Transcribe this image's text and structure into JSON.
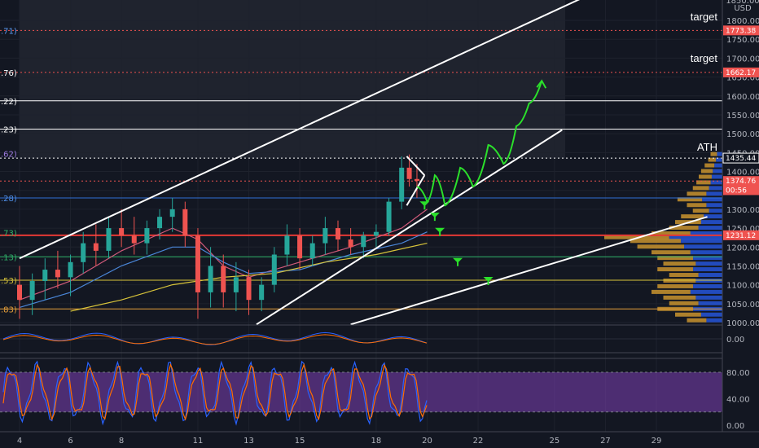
{
  "chart_data": {
    "type": "candlestick",
    "price_axis": {
      "currency_label": "USD",
      "top_label": "1850.00",
      "ticks": [
        "1800.00",
        "1750.00",
        "1700.00",
        "1650.00",
        "1600.00",
        "1550.00",
        "1500.00",
        "1450.00",
        "1400.00",
        "1350.00",
        "1300.00",
        "1250.00",
        "1200.00",
        "1150.00",
        "1100.00",
        "1050.00",
        "1000.00"
      ],
      "tick_values": [
        1800,
        1750,
        1700,
        1650,
        1600,
        1550,
        1500,
        1450,
        1400,
        1350,
        1300,
        1250,
        1200,
        1150,
        1100,
        1050,
        1000
      ]
    },
    "time_axis": {
      "ticks": [
        "4",
        "6",
        "8",
        "11",
        "13",
        "15",
        "18",
        "20",
        "22",
        "25",
        "27",
        "29"
      ],
      "day_values": [
        4,
        6,
        8,
        11,
        13,
        15,
        18,
        20,
        22,
        25,
        27,
        29
      ]
    },
    "macd_axis": {
      "ticks": [
        "0.00"
      ]
    },
    "stoch_axis": {
      "ticks": [
        "80.00",
        "40.00",
        "0.00"
      ],
      "band": [
        20,
        80
      ]
    },
    "price_tags": [
      {
        "value": "1773.38",
        "price": 1773.38,
        "color": "#ef5350"
      },
      {
        "value": "1662.17",
        "price": 1662.17,
        "color": "#ef5350"
      },
      {
        "value": "1435.44",
        "price": 1435.44,
        "color": "#131722"
      },
      {
        "value": "1374.76",
        "price": 1374.76,
        "color": "#ef5350"
      },
      {
        "value": "00:56",
        "price": 1350.5,
        "color": "#ef5350"
      },
      {
        "value": "1231.12",
        "price": 1231.12,
        "color": "#ef5350"
      }
    ],
    "fib_labels": [
      {
        "text": ".71)",
        "price": 1773.38,
        "color": "#5b9cf6"
      },
      {
        "text": ".76)",
        "price": 1662.17,
        "color": "#ffffff"
      },
      {
        "text": ".22)",
        "price": 1587,
        "color": "#ffffff"
      },
      {
        "text": ".23)",
        "price": 1512,
        "color": "#ffffff"
      },
      {
        "text": ".62)",
        "price": 1447,
        "color": "#9c7be0"
      },
      {
        "text": ".28)",
        "price": 1330,
        "color": "#4f8fe8"
      },
      {
        "text": ".73)",
        "price": 1238,
        "color": "#2fb36a"
      },
      {
        "text": ".13)",
        "price": 1174,
        "color": "#2fb36a"
      },
      {
        "text": ".53)",
        "price": 1112,
        "color": "#d8c43a"
      },
      {
        "text": ".83)",
        "price": 1036,
        "color": "#e8a03a"
      }
    ],
    "horizontal_lines": [
      {
        "price": 1773.38,
        "color": "#ef5350",
        "style": "dotted"
      },
      {
        "price": 1662.17,
        "color": "#ef5350",
        "style": "dotted"
      },
      {
        "price": 1587,
        "color": "#ffffff",
        "style": "solid"
      },
      {
        "price": 1512,
        "color": "#ffffff",
        "style": "solid"
      },
      {
        "price": 1435.44,
        "color": "#ffffff",
        "style": "dotted"
      },
      {
        "price": 1330,
        "color": "#2f6fd6",
        "style": "solid"
      },
      {
        "price": 1231.12,
        "color": "#e53935",
        "style": "solid"
      },
      {
        "price": 1174,
        "color": "#2fb36a",
        "style": "solid"
      },
      {
        "price": 1112,
        "color": "#d8c43a",
        "style": "solid"
      },
      {
        "price": 1036,
        "color": "#e8a03a",
        "style": "solid"
      },
      {
        "price": 1374.76,
        "color": "#ef5350",
        "style": "dotted"
      }
    ],
    "annotations": [
      {
        "text": "target",
        "price": 1800
      },
      {
        "text": "target",
        "price": 1690
      },
      {
        "text": "ATH",
        "price": 1455
      }
    ],
    "candles": [
      {
        "day": 4,
        "o": 1100,
        "h": 1150,
        "l": 1010,
        "c": 1060
      },
      {
        "day": 4.5,
        "o": 1060,
        "h": 1130,
        "l": 1020,
        "c": 1110
      },
      {
        "day": 5,
        "o": 1110,
        "h": 1170,
        "l": 1060,
        "c": 1140
      },
      {
        "day": 5.5,
        "o": 1140,
        "h": 1190,
        "l": 1090,
        "c": 1120
      },
      {
        "day": 6,
        "o": 1120,
        "h": 1180,
        "l": 1070,
        "c": 1160
      },
      {
        "day": 6.5,
        "o": 1160,
        "h": 1240,
        "l": 1130,
        "c": 1210
      },
      {
        "day": 7,
        "o": 1210,
        "h": 1260,
        "l": 1150,
        "c": 1190
      },
      {
        "day": 7.5,
        "o": 1190,
        "h": 1280,
        "l": 1170,
        "c": 1250
      },
      {
        "day": 8,
        "o": 1250,
        "h": 1300,
        "l": 1200,
        "c": 1230
      },
      {
        "day": 8.5,
        "o": 1230,
        "h": 1280,
        "l": 1180,
        "c": 1210
      },
      {
        "day": 9,
        "o": 1210,
        "h": 1270,
        "l": 1180,
        "c": 1250
      },
      {
        "day": 9.5,
        "o": 1250,
        "h": 1300,
        "l": 1220,
        "c": 1280
      },
      {
        "day": 10,
        "o": 1280,
        "h": 1330,
        "l": 1240,
        "c": 1300
      },
      {
        "day": 10.5,
        "o": 1300,
        "h": 1320,
        "l": 1200,
        "c": 1230
      },
      {
        "day": 11,
        "o": 1230,
        "h": 1250,
        "l": 1010,
        "c": 1080
      },
      {
        "day": 11.5,
        "o": 1080,
        "h": 1200,
        "l": 1040,
        "c": 1150
      },
      {
        "day": 12,
        "o": 1150,
        "h": 1180,
        "l": 1040,
        "c": 1080
      },
      {
        "day": 12.5,
        "o": 1080,
        "h": 1160,
        "l": 1030,
        "c": 1120
      },
      {
        "day": 13,
        "o": 1120,
        "h": 1140,
        "l": 1020,
        "c": 1060
      },
      {
        "day": 13.5,
        "o": 1060,
        "h": 1120,
        "l": 1030,
        "c": 1100
      },
      {
        "day": 14,
        "o": 1100,
        "h": 1200,
        "l": 1080,
        "c": 1180
      },
      {
        "day": 14.5,
        "o": 1180,
        "h": 1260,
        "l": 1150,
        "c": 1230
      },
      {
        "day": 15,
        "o": 1230,
        "h": 1250,
        "l": 1140,
        "c": 1170
      },
      {
        "day": 15.5,
        "o": 1170,
        "h": 1230,
        "l": 1150,
        "c": 1210
      },
      {
        "day": 16,
        "o": 1210,
        "h": 1280,
        "l": 1180,
        "c": 1250
      },
      {
        "day": 16.5,
        "o": 1250,
        "h": 1270,
        "l": 1190,
        "c": 1220
      },
      {
        "day": 17,
        "o": 1220,
        "h": 1250,
        "l": 1180,
        "c": 1200
      },
      {
        "day": 17.5,
        "o": 1200,
        "h": 1240,
        "l": 1170,
        "c": 1230
      },
      {
        "day": 18,
        "o": 1230,
        "h": 1260,
        "l": 1200,
        "c": 1240
      },
      {
        "day": 18.5,
        "o": 1240,
        "h": 1330,
        "l": 1230,
        "c": 1320
      },
      {
        "day": 19,
        "o": 1320,
        "h": 1440,
        "l": 1300,
        "c": 1410
      },
      {
        "day": 19.3,
        "o": 1410,
        "h": 1445,
        "l": 1360,
        "c": 1380
      },
      {
        "day": 19.6,
        "o": 1380,
        "h": 1420,
        "l": 1330,
        "c": 1375
      }
    ],
    "moving_averages": [
      {
        "color": "#d05a7a",
        "points": [
          [
            4,
            1060
          ],
          [
            6,
            1110
          ],
          [
            8,
            1190
          ],
          [
            10,
            1250
          ],
          [
            11,
            1220
          ],
          [
            12,
            1150
          ],
          [
            13,
            1120
          ],
          [
            15,
            1160
          ],
          [
            17,
            1200
          ],
          [
            19,
            1250
          ],
          [
            20,
            1300
          ]
        ]
      },
      {
        "color": "#4a86d8",
        "points": [
          [
            4,
            1040
          ],
          [
            6,
            1080
          ],
          [
            8,
            1150
          ],
          [
            10,
            1200
          ],
          [
            11,
            1200
          ],
          [
            12,
            1160
          ],
          [
            13,
            1130
          ],
          [
            15,
            1140
          ],
          [
            17,
            1180
          ],
          [
            19,
            1210
          ],
          [
            20,
            1240
          ]
        ]
      },
      {
        "color": "#d8c43a",
        "points": [
          [
            6,
            1030
          ],
          [
            8,
            1060
          ],
          [
            10,
            1100
          ],
          [
            12,
            1120
          ],
          [
            14,
            1130
          ],
          [
            16,
            1160
          ],
          [
            18,
            1180
          ],
          [
            20,
            1210
          ]
        ]
      }
    ],
    "trend_lines": [
      {
        "color": "#ffffff",
        "from": [
          4,
          1170
        ],
        "to": [
          29,
          1950
        ]
      },
      {
        "color": "#ffffff",
        "from": [
          13.3,
          995
        ],
        "to": [
          25.3,
          1510
        ]
      },
      {
        "color": "#ffffff",
        "from": [
          17,
          995
        ],
        "to": [
          31,
          1280
        ]
      },
      {
        "color": "#ffffff",
        "from": [
          19.2,
          1440
        ],
        "to": [
          19.9,
          1390
        ]
      },
      {
        "color": "#ffffff",
        "from": [
          19.9,
          1390
        ],
        "to": [
          19.2,
          1310
        ]
      }
    ],
    "projection_path": [
      [
        19.6,
        1360
      ],
      [
        20.0,
        1320
      ],
      [
        20.3,
        1390
      ],
      [
        20.7,
        1310
      ],
      [
        21.3,
        1410
      ],
      [
        21.8,
        1360
      ],
      [
        22.4,
        1470
      ],
      [
        23.0,
        1420
      ],
      [
        23.5,
        1520
      ],
      [
        24.0,
        1580
      ],
      [
        24.5,
        1640
      ]
    ],
    "buy_markers": [
      [
        19.9,
        1310
      ],
      [
        20.3,
        1280
      ],
      [
        20.5,
        1240
      ],
      [
        21.2,
        1160
      ],
      [
        22.4,
        1110
      ]
    ],
    "volume_profile": [
      {
        "price": 1445,
        "v": 0.1
      },
      {
        "price": 1430,
        "v": 0.12
      },
      {
        "price": 1415,
        "v": 0.15
      },
      {
        "price": 1400,
        "v": 0.18
      },
      {
        "price": 1385,
        "v": 0.2
      },
      {
        "price": 1370,
        "v": 0.22
      },
      {
        "price": 1355,
        "v": 0.25
      },
      {
        "price": 1340,
        "v": 0.3
      },
      {
        "price": 1325,
        "v": 0.38
      },
      {
        "price": 1310,
        "v": 0.3
      },
      {
        "price": 1295,
        "v": 0.25
      },
      {
        "price": 1280,
        "v": 0.35
      },
      {
        "price": 1265,
        "v": 0.4
      },
      {
        "price": 1250,
        "v": 0.45
      },
      {
        "price": 1235,
        "v": 0.6
      },
      {
        "price": 1225,
        "v": 1.0
      },
      {
        "price": 1215,
        "v": 0.78
      },
      {
        "price": 1200,
        "v": 0.72
      },
      {
        "price": 1185,
        "v": 0.6
      },
      {
        "price": 1170,
        "v": 0.55
      },
      {
        "price": 1155,
        "v": 0.5
      },
      {
        "price": 1140,
        "v": 0.55
      },
      {
        "price": 1125,
        "v": 0.45
      },
      {
        "price": 1110,
        "v": 0.5
      },
      {
        "price": 1095,
        "v": 0.55
      },
      {
        "price": 1080,
        "v": 0.6
      },
      {
        "price": 1065,
        "v": 0.5
      },
      {
        "price": 1050,
        "v": 0.45
      },
      {
        "price": 1035,
        "v": 0.55
      },
      {
        "price": 1020,
        "v": 0.4
      },
      {
        "price": 1005,
        "v": 0.3
      }
    ]
  }
}
